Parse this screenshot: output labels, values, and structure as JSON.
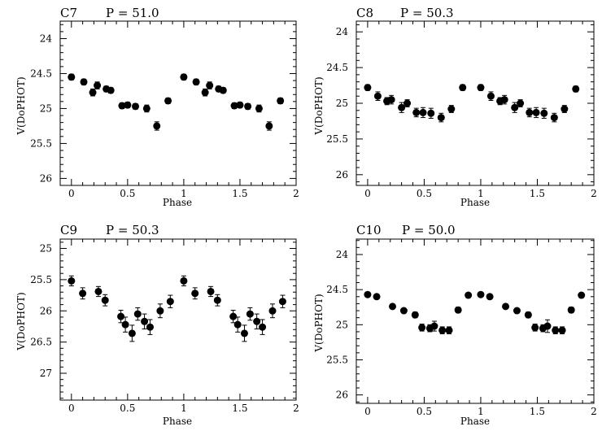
{
  "chart_data": [
    {
      "type": "scatter",
      "id": "C7",
      "title_id": "C7",
      "title_period": "P = 51.0",
      "xlabel": "Phase",
      "ylabel": "V(DoPHOT)",
      "xlim": [
        -0.1,
        2.0
      ],
      "ylim": [
        26.1,
        23.75
      ],
      "y_inverted": true,
      "xticks": [
        "0",
        "0.5",
        "1",
        "1.5",
        "2"
      ],
      "yticks": [
        "24",
        "24.5",
        "25",
        "25.5",
        "26"
      ],
      "points": [
        {
          "x": 0.0,
          "y": 24.55,
          "err": 0.04
        },
        {
          "x": 0.11,
          "y": 24.62,
          "err": 0.04
        },
        {
          "x": 0.19,
          "y": 24.77,
          "err": 0.05
        },
        {
          "x": 0.23,
          "y": 24.67,
          "err": 0.05
        },
        {
          "x": 0.31,
          "y": 24.72,
          "err": 0.04
        },
        {
          "x": 0.35,
          "y": 24.74,
          "err": 0.04
        },
        {
          "x": 0.45,
          "y": 24.96,
          "err": 0.04
        },
        {
          "x": 0.5,
          "y": 24.95,
          "err": 0.04
        },
        {
          "x": 0.57,
          "y": 24.97,
          "err": 0.04
        },
        {
          "x": 0.67,
          "y": 25.0,
          "err": 0.05
        },
        {
          "x": 0.76,
          "y": 25.25,
          "err": 0.06
        },
        {
          "x": 0.86,
          "y": 24.89,
          "err": 0.04
        },
        {
          "x": 1.0,
          "y": 24.55,
          "err": 0.04
        },
        {
          "x": 1.11,
          "y": 24.62,
          "err": 0.04
        },
        {
          "x": 1.19,
          "y": 24.77,
          "err": 0.05
        },
        {
          "x": 1.23,
          "y": 24.67,
          "err": 0.05
        },
        {
          "x": 1.31,
          "y": 24.72,
          "err": 0.04
        },
        {
          "x": 1.35,
          "y": 24.74,
          "err": 0.04
        },
        {
          "x": 1.45,
          "y": 24.96,
          "err": 0.04
        },
        {
          "x": 1.5,
          "y": 24.95,
          "err": 0.04
        },
        {
          "x": 1.57,
          "y": 24.97,
          "err": 0.04
        },
        {
          "x": 1.67,
          "y": 25.0,
          "err": 0.05
        },
        {
          "x": 1.76,
          "y": 25.25,
          "err": 0.06
        },
        {
          "x": 1.86,
          "y": 24.89,
          "err": 0.04
        }
      ]
    },
    {
      "type": "scatter",
      "id": "C8",
      "title_id": "C8",
      "title_period": "P = 50.3",
      "xlabel": "Phase",
      "ylabel": "V(DoPHOT)",
      "xlim": [
        -0.1,
        2.0
      ],
      "ylim": [
        26.15,
        23.85
      ],
      "y_inverted": true,
      "xticks": [
        "0",
        "0.5",
        "1",
        "1.5",
        "2"
      ],
      "yticks": [
        "24",
        "24.5",
        "25",
        "25.5",
        "26"
      ],
      "points": [
        {
          "x": 0.0,
          "y": 24.78,
          "err": 0.04
        },
        {
          "x": 0.09,
          "y": 24.9,
          "err": 0.06
        },
        {
          "x": 0.17,
          "y": 24.97,
          "err": 0.05
        },
        {
          "x": 0.21,
          "y": 24.95,
          "err": 0.06
        },
        {
          "x": 0.3,
          "y": 25.06,
          "err": 0.07
        },
        {
          "x": 0.35,
          "y": 25.0,
          "err": 0.05
        },
        {
          "x": 0.43,
          "y": 25.13,
          "err": 0.06
        },
        {
          "x": 0.49,
          "y": 25.13,
          "err": 0.07
        },
        {
          "x": 0.56,
          "y": 25.14,
          "err": 0.07
        },
        {
          "x": 0.65,
          "y": 25.2,
          "err": 0.06
        },
        {
          "x": 0.74,
          "y": 25.08,
          "err": 0.05
        },
        {
          "x": 0.84,
          "y": 24.78,
          "err": 0.04
        },
        {
          "x": 1.0,
          "y": 24.78,
          "err": 0.04
        },
        {
          "x": 1.09,
          "y": 24.9,
          "err": 0.06
        },
        {
          "x": 1.17,
          "y": 24.97,
          "err": 0.05
        },
        {
          "x": 1.21,
          "y": 24.95,
          "err": 0.06
        },
        {
          "x": 1.3,
          "y": 25.06,
          "err": 0.07
        },
        {
          "x": 1.35,
          "y": 25.0,
          "err": 0.05
        },
        {
          "x": 1.43,
          "y": 25.13,
          "err": 0.06
        },
        {
          "x": 1.49,
          "y": 25.13,
          "err": 0.07
        },
        {
          "x": 1.56,
          "y": 25.14,
          "err": 0.07
        },
        {
          "x": 1.65,
          "y": 25.2,
          "err": 0.06
        },
        {
          "x": 1.74,
          "y": 25.08,
          "err": 0.05
        },
        {
          "x": 1.84,
          "y": 24.8,
          "err": 0.04
        }
      ]
    },
    {
      "type": "scatter",
      "id": "C9",
      "title_id": "C9",
      "title_period": "P = 50.3",
      "xlabel": "Phase",
      "ylabel": "V(DoPHOT)",
      "xlim": [
        -0.1,
        2.0
      ],
      "ylim": [
        27.43,
        24.85
      ],
      "y_inverted": true,
      "xticks": [
        "0",
        "0.5",
        "1",
        "1.5",
        "2"
      ],
      "yticks": [
        "25",
        "25.5",
        "26",
        "26.5",
        "27"
      ],
      "points": [
        {
          "x": 0.0,
          "y": 25.52,
          "err": 0.08
        },
        {
          "x": 0.1,
          "y": 25.72,
          "err": 0.09
        },
        {
          "x": 0.24,
          "y": 25.69,
          "err": 0.08
        },
        {
          "x": 0.3,
          "y": 25.83,
          "err": 0.09
        },
        {
          "x": 0.44,
          "y": 26.09,
          "err": 0.1
        },
        {
          "x": 0.48,
          "y": 26.22,
          "err": 0.12
        },
        {
          "x": 0.54,
          "y": 26.36,
          "err": 0.13
        },
        {
          "x": 0.59,
          "y": 26.05,
          "err": 0.1
        },
        {
          "x": 0.65,
          "y": 26.17,
          "err": 0.12
        },
        {
          "x": 0.7,
          "y": 26.26,
          "err": 0.12
        },
        {
          "x": 0.79,
          "y": 26.0,
          "err": 0.11
        },
        {
          "x": 0.88,
          "y": 25.85,
          "err": 0.1
        },
        {
          "x": 1.0,
          "y": 25.52,
          "err": 0.08
        },
        {
          "x": 1.1,
          "y": 25.72,
          "err": 0.09
        },
        {
          "x": 1.24,
          "y": 25.69,
          "err": 0.08
        },
        {
          "x": 1.3,
          "y": 25.83,
          "err": 0.09
        },
        {
          "x": 1.44,
          "y": 26.09,
          "err": 0.1
        },
        {
          "x": 1.48,
          "y": 26.22,
          "err": 0.12
        },
        {
          "x": 1.54,
          "y": 26.36,
          "err": 0.13
        },
        {
          "x": 1.59,
          "y": 26.05,
          "err": 0.1
        },
        {
          "x": 1.65,
          "y": 26.17,
          "err": 0.12
        },
        {
          "x": 1.7,
          "y": 26.26,
          "err": 0.12
        },
        {
          "x": 1.79,
          "y": 26.0,
          "err": 0.11
        },
        {
          "x": 1.88,
          "y": 25.85,
          "err": 0.1
        }
      ]
    },
    {
      "type": "scatter",
      "id": "C10",
      "title_id": "C10",
      "title_period": "P = 50.0",
      "xlabel": "Phase",
      "ylabel": "V(DoPHOT)",
      "xlim": [
        -0.1,
        2.0
      ],
      "ylim": [
        26.12,
        23.78
      ],
      "y_inverted": true,
      "xticks": [
        "0",
        "0.5",
        "1",
        "1.5",
        "2"
      ],
      "yticks": [
        "24",
        "24.5",
        "25",
        "25.5",
        "26"
      ],
      "points": [
        {
          "x": 0.0,
          "y": 24.57,
          "err": 0.03
        },
        {
          "x": 0.08,
          "y": 24.6,
          "err": 0.03
        },
        {
          "x": 0.22,
          "y": 24.74,
          "err": 0.03
        },
        {
          "x": 0.32,
          "y": 24.8,
          "err": 0.03
        },
        {
          "x": 0.42,
          "y": 24.86,
          "err": 0.04
        },
        {
          "x": 0.48,
          "y": 25.04,
          "err": 0.05
        },
        {
          "x": 0.55,
          "y": 25.05,
          "err": 0.05
        },
        {
          "x": 0.59,
          "y": 25.02,
          "err": 0.07
        },
        {
          "x": 0.66,
          "y": 25.08,
          "err": 0.05
        },
        {
          "x": 0.72,
          "y": 25.08,
          "err": 0.05
        },
        {
          "x": 0.8,
          "y": 24.79,
          "err": 0.04
        },
        {
          "x": 0.89,
          "y": 24.58,
          "err": 0.03
        },
        {
          "x": 1.0,
          "y": 24.57,
          "err": 0.03
        },
        {
          "x": 1.08,
          "y": 24.6,
          "err": 0.03
        },
        {
          "x": 1.22,
          "y": 24.74,
          "err": 0.03
        },
        {
          "x": 1.32,
          "y": 24.8,
          "err": 0.03
        },
        {
          "x": 1.42,
          "y": 24.86,
          "err": 0.04
        },
        {
          "x": 1.48,
          "y": 25.04,
          "err": 0.05
        },
        {
          "x": 1.55,
          "y": 25.05,
          "err": 0.05
        },
        {
          "x": 1.59,
          "y": 25.02,
          "err": 0.09
        },
        {
          "x": 1.66,
          "y": 25.08,
          "err": 0.05
        },
        {
          "x": 1.72,
          "y": 25.08,
          "err": 0.05
        },
        {
          "x": 1.8,
          "y": 24.79,
          "err": 0.04
        },
        {
          "x": 1.89,
          "y": 24.58,
          "err": 0.03
        }
      ]
    }
  ]
}
